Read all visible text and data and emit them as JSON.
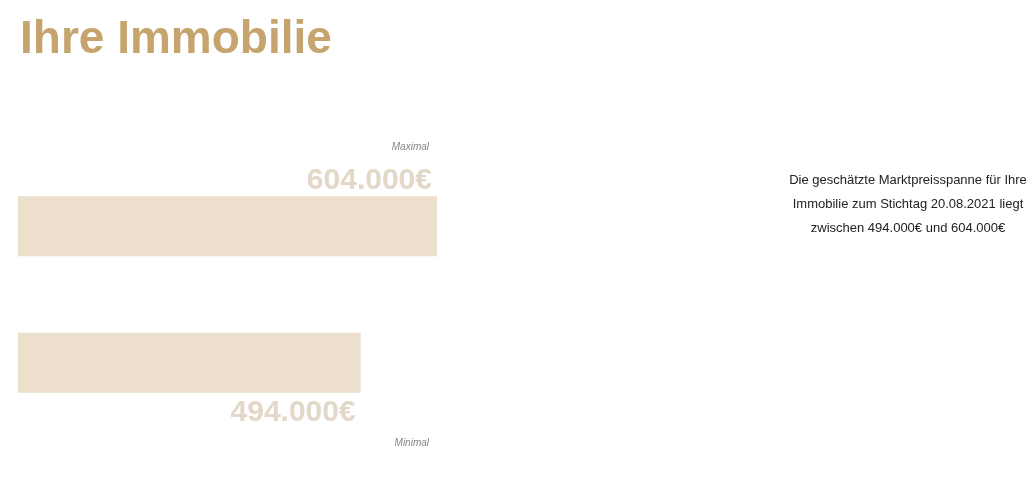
{
  "chart_data": {
    "type": "bar",
    "orientation": "horizontal",
    "title": "Ihre Immobilie",
    "categories": [
      "Maximal",
      "Minimal"
    ],
    "values": [
      604000,
      494000
    ],
    "value_labels": [
      "604.000€",
      "494.000€"
    ],
    "color": "#ecdfcb",
    "annotations": [
      "Die geschätzte Marktpreisspanne für Ihre Immobilie zum Stichtag 20.08.2021 liegt zwischen 494.000€ und 604.000€"
    ]
  }
}
